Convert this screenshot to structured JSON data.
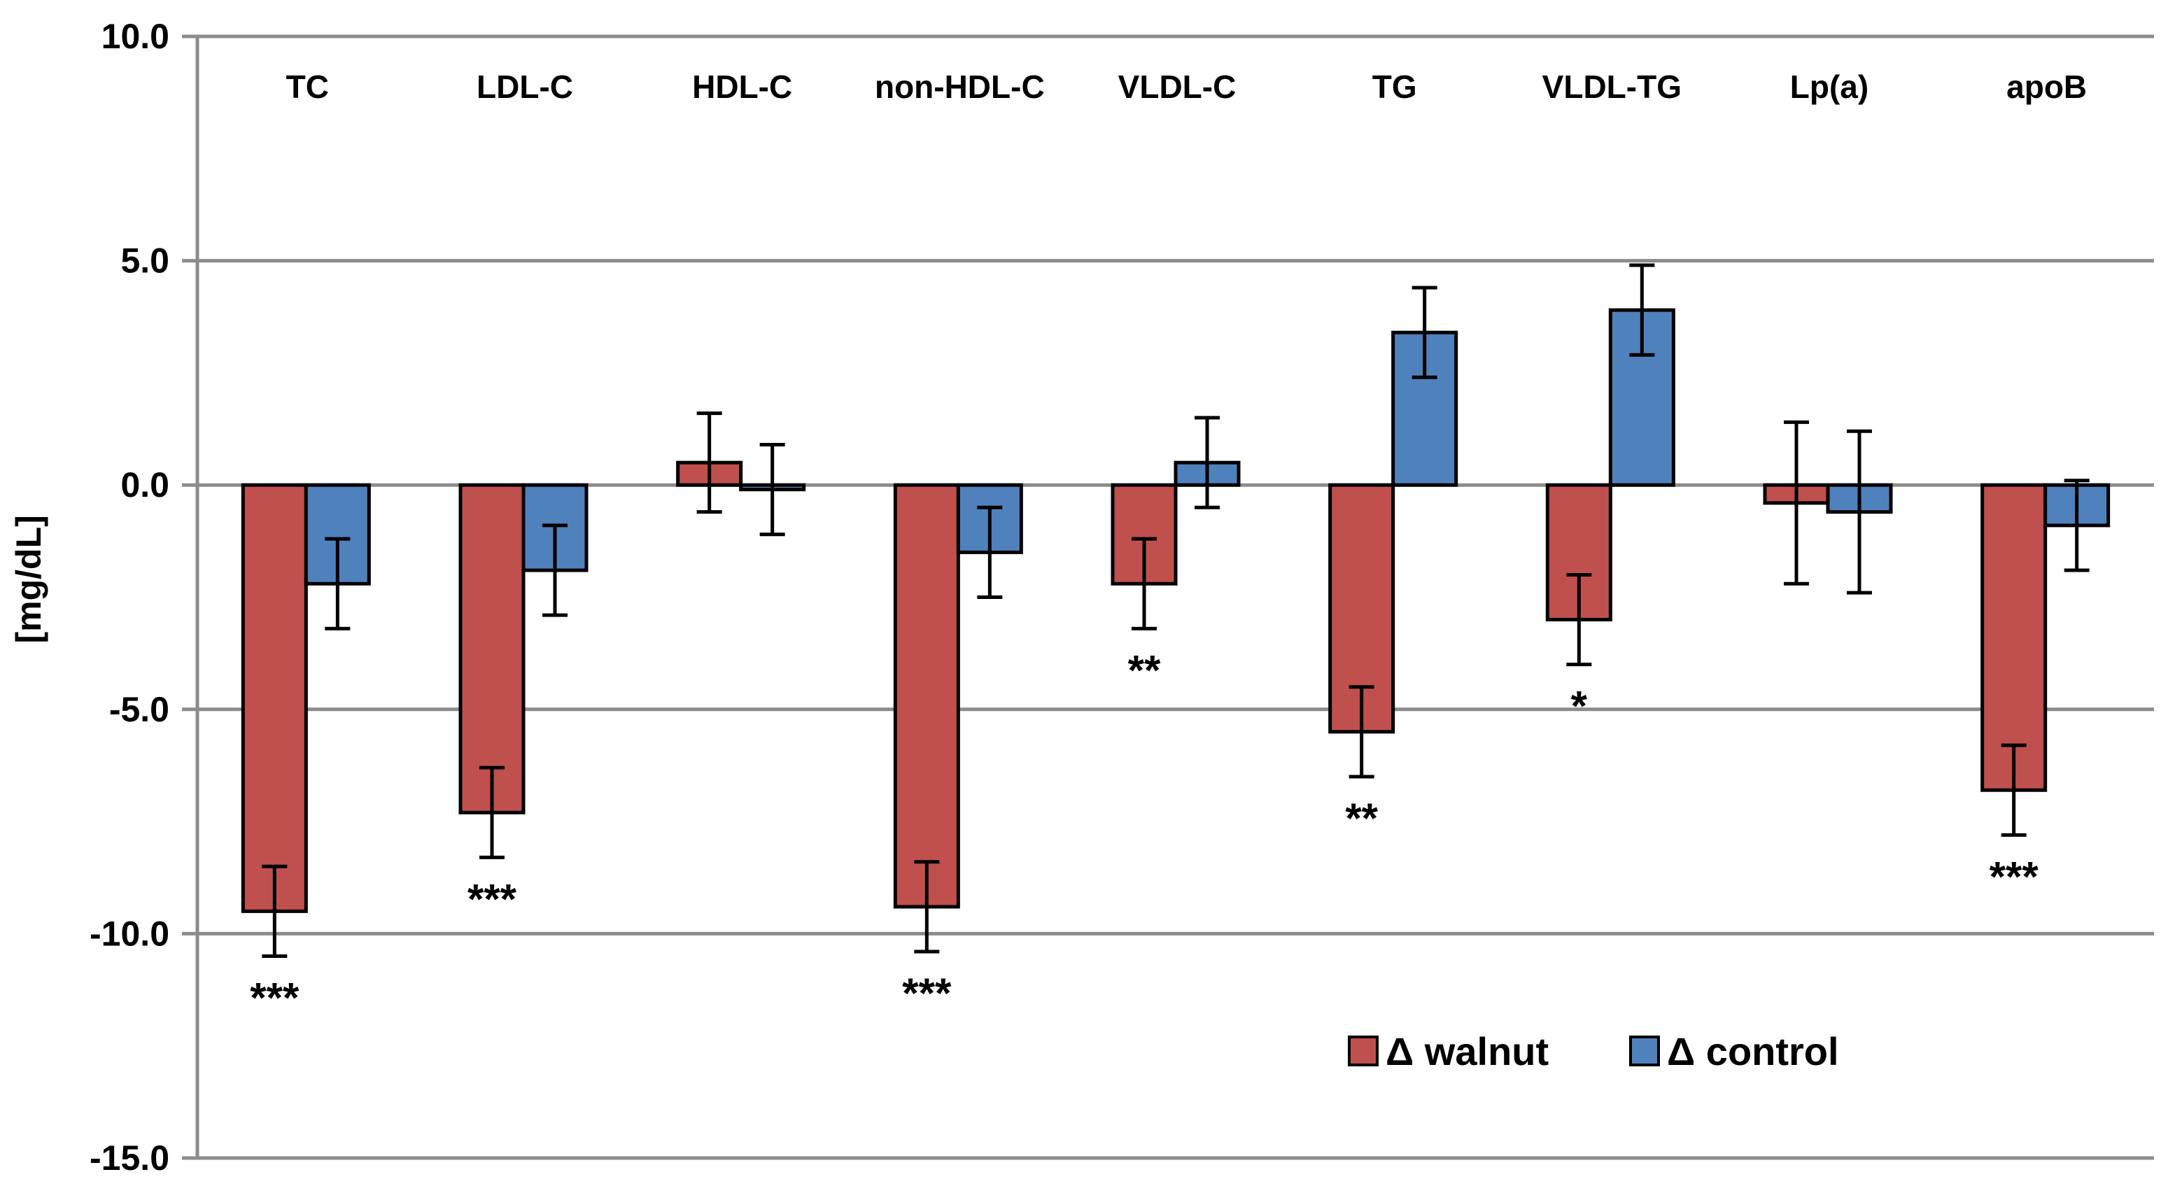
{
  "chart_data": {
    "type": "bar",
    "title": "",
    "xlabel": "",
    "ylabel": "[mg/dL]",
    "ylim": [
      -15,
      10
    ],
    "yticks": [
      10,
      5,
      0,
      -5,
      -10,
      -15
    ],
    "ytick_labels": [
      "10.0",
      "5.0",
      "0.0",
      "-5.0",
      "-10.0",
      "-15.0"
    ],
    "grid": true,
    "categories": [
      "TC",
      "LDL-C",
      "HDL-C",
      "non-HDL-C",
      "VLDL-C",
      "TG",
      "VLDL-TG",
      "Lp(a)",
      "apoB"
    ],
    "category_label_position": "top",
    "series": [
      {
        "name": "Δ walnut",
        "color": "#C0504D",
        "values": [
          -9.5,
          -7.3,
          0.5,
          -9.4,
          -2.2,
          -5.5,
          -3.0,
          -0.4,
          -6.8
        ],
        "errors": [
          1.0,
          1.0,
          1.1,
          1.0,
          1.0,
          1.0,
          1.0,
          1.8,
          1.0
        ]
      },
      {
        "name": "Δ control",
        "color": "#4F81BD",
        "values": [
          -2.2,
          -1.9,
          -0.1,
          -1.5,
          0.5,
          3.4,
          3.9,
          -0.6,
          -0.9
        ],
        "errors": [
          1.0,
          1.0,
          1.0,
          1.0,
          1.0,
          1.0,
          1.0,
          1.8,
          1.0
        ]
      }
    ],
    "significance": [
      {
        "category": "TC",
        "series": "Δ walnut",
        "label": "***"
      },
      {
        "category": "LDL-C",
        "series": "Δ walnut",
        "label": "***"
      },
      {
        "category": "non-HDL-C",
        "series": "Δ walnut",
        "label": "***"
      },
      {
        "category": "VLDL-C",
        "series": "Δ walnut",
        "label": "**"
      },
      {
        "category": "TG",
        "series": "Δ walnut",
        "label": "**"
      },
      {
        "category": "VLDL-TG",
        "series": "Δ walnut",
        "label": "*"
      },
      {
        "category": "apoB",
        "series": "Δ walnut",
        "label": "***"
      }
    ],
    "legend": {
      "position": "bottom-right",
      "entries": [
        "Δ walnut",
        "Δ control"
      ]
    }
  }
}
